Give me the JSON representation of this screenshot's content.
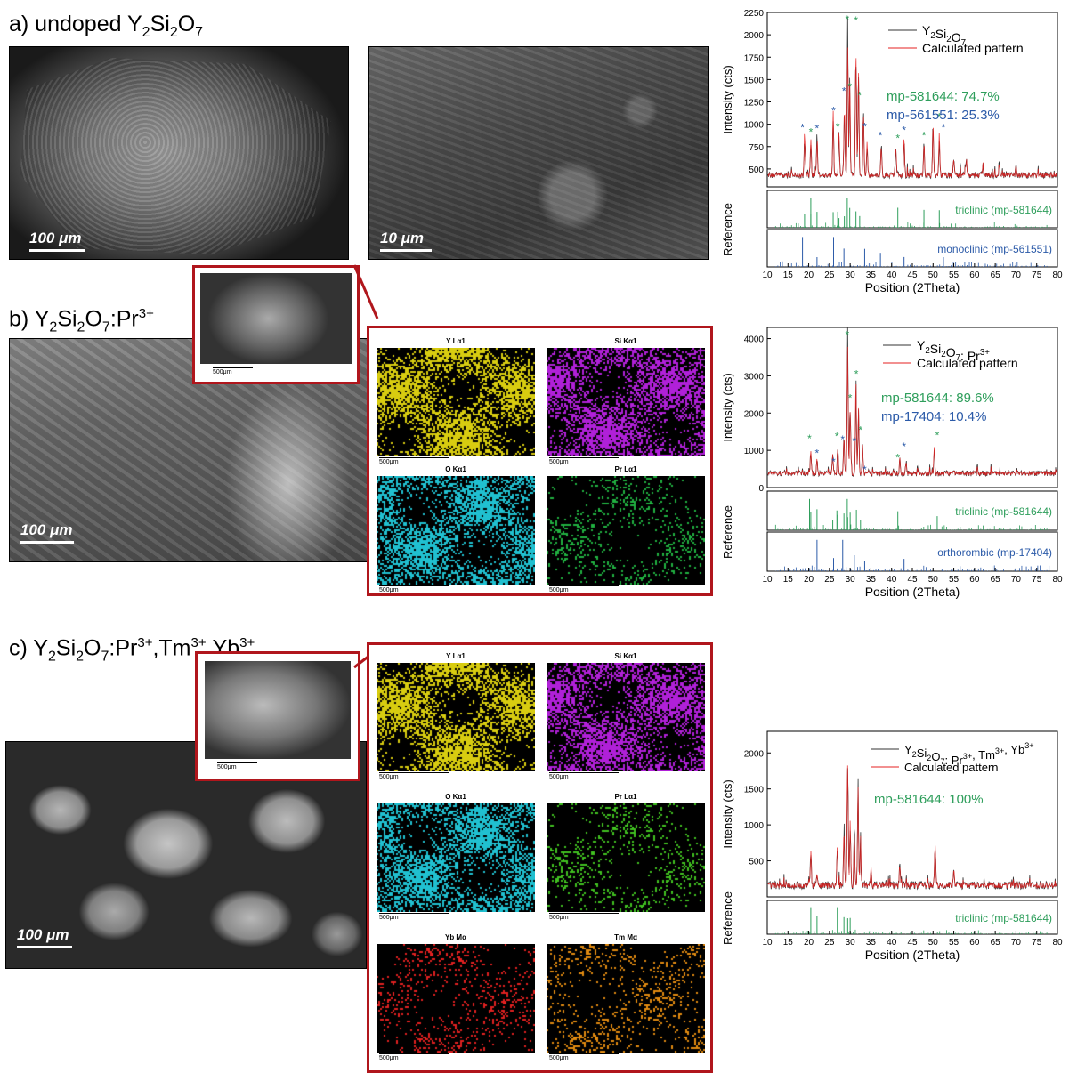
{
  "panels": {
    "a": {
      "title_prefix": "a)  undoped Y",
      "sub1": "2",
      "mid1": "Si",
      "sub2": "2",
      "mid2": "O",
      "sub3": "7",
      "scale1": "100 μm",
      "scale2": "10 μm"
    },
    "b": {
      "title_prefix": "b) Y",
      "sub1": "2",
      "mid1": "Si",
      "sub2": "2",
      "mid2": "O",
      "sub3": "7",
      "mid3": ":Pr",
      "sup1": "3+",
      "scale": "100 μm",
      "inset_scale": "500μm"
    },
    "c": {
      "title_prefix": "c) Y",
      "sub1": "2",
      "mid1": "Si",
      "sub2": "2",
      "mid2": "O",
      "sub3": "7",
      "mid3": ":Pr",
      "sup1": "3+",
      "mid4": ",Tm",
      "sup2": "3+",
      "mid5": ",Yb",
      "sup3": "3+",
      "scale": "100 μm",
      "inset_scale": "500μm"
    }
  },
  "eds": {
    "b": [
      {
        "label": "Y Lα1",
        "scale": "500μm",
        "color": "#d8cc10"
      },
      {
        "label": "Si Kα1",
        "scale": "500μm",
        "color": "#b020d8"
      },
      {
        "label": "O Kα1",
        "scale": "500μm",
        "color": "#20c0d0"
      },
      {
        "label": "Pr Lα1",
        "scale": "500μm",
        "color": "#20b040"
      }
    ],
    "c": [
      {
        "label": "Y Lα1",
        "scale": "500μm",
        "color": "#d8cc10"
      },
      {
        "label": "Si Kα1",
        "scale": "500μm",
        "color": "#b020d8"
      },
      {
        "label": "O Kα1",
        "scale": "500μm",
        "color": "#20c0d0"
      },
      {
        "label": "Pr Lα1",
        "scale": "500μm",
        "color": "#40c020"
      },
      {
        "label": "Yb Mα",
        "scale": "500μm",
        "color": "#e02020"
      },
      {
        "label": "Tm Mα",
        "scale": "500μm",
        "color": "#e08a10"
      }
    ]
  },
  "chart_data": [
    {
      "type": "line",
      "xlabel": "Position (2Theta)",
      "ylabel": "Intensity (cts)",
      "ref_ylabel": "Reference",
      "xlim": [
        10,
        80
      ],
      "ylim": [
        300,
        2250
      ],
      "yticks": [
        500,
        750,
        1000,
        1250,
        1500,
        1750,
        2000,
        2250
      ],
      "xticks": [
        10,
        15,
        20,
        25,
        30,
        35,
        40,
        45,
        50,
        55,
        60,
        65,
        70,
        75,
        80
      ],
      "legend": [
        "Y2Si2O7",
        "Calculated pattern"
      ],
      "legend_sample": {
        "main": "Y",
        "sub1": "2",
        "mid1": "Si",
        "sub2": "2",
        "mid2": "O",
        "sub3": "7"
      },
      "legend_calc": "Calculated pattern",
      "phase1": "mp-581644: 74.7%",
      "phase2": "mp-561551: 25.3%",
      "refs": [
        "triclinic (mp-581644)",
        "monoclinic (mp-561551)"
      ],
      "peaks": [
        [
          19.0,
          870
        ],
        [
          20.5,
          820
        ],
        [
          22.0,
          840
        ],
        [
          25.9,
          1080
        ],
        [
          27.3,
          900
        ],
        [
          28.6,
          1250
        ],
        [
          29.4,
          2000
        ],
        [
          29.9,
          1400
        ],
        [
          31.4,
          2050
        ],
        [
          32.0,
          1500
        ],
        [
          33.2,
          1100
        ],
        [
          34.1,
          800
        ],
        [
          37.5,
          760
        ],
        [
          41.0,
          760
        ],
        [
          43.0,
          820
        ],
        [
          47.8,
          760
        ],
        [
          50.0,
          1000
        ],
        [
          51.5,
          880
        ],
        [
          55.0,
          600
        ],
        [
          58.0,
          600
        ],
        [
          62.0,
          560
        ],
        [
          66.0,
          540
        ],
        [
          70.0,
          530
        ]
      ],
      "green_stars": [
        [
          20.5,
          870
        ],
        [
          27.0,
          930
        ],
        [
          29.3,
          2130
        ],
        [
          29.9,
          1380
        ],
        [
          31.4,
          2120
        ],
        [
          32.3,
          1280
        ],
        [
          41.5,
          800
        ],
        [
          47.8,
          830
        ],
        [
          51.5,
          1040
        ]
      ],
      "blue_stars": [
        [
          18.5,
          920
        ],
        [
          22.0,
          910
        ],
        [
          26.0,
          1110
        ],
        [
          28.5,
          1330
        ],
        [
          33.5,
          930
        ],
        [
          37.3,
          830
        ],
        [
          43.0,
          890
        ],
        [
          52.5,
          920
        ]
      ]
    },
    {
      "type": "line",
      "xlabel": "Position (2Theta)",
      "ylabel": "Intensity (cts)",
      "ref_ylabel": "Reference",
      "xlim": [
        10,
        80
      ],
      "ylim": [
        0,
        4300
      ],
      "yticks": [
        0,
        1000,
        2000,
        3000,
        4000
      ],
      "xticks": [
        10,
        15,
        20,
        25,
        30,
        35,
        40,
        45,
        50,
        55,
        60,
        65,
        70,
        75,
        80
      ],
      "legend_sample": {
        "main": "Y",
        "sub1": "2",
        "mid1": "Si",
        "sub2": "2",
        "mid2": "O",
        "sub3": "7",
        "rest": ": Pr",
        "sup1": "3+"
      },
      "legend_calc": "Calculated pattern",
      "phase1": "mp-581644: 89.6%",
      "phase2": "mp-17404: 10.4%",
      "refs": [
        "triclinic (mp-581644)",
        "orthorombic (mp-17404)"
      ],
      "peaks": [
        [
          20.5,
          1000
        ],
        [
          22.0,
          700
        ],
        [
          25.8,
          900
        ],
        [
          27.0,
          1100
        ],
        [
          28.5,
          1300
        ],
        [
          29.4,
          3700
        ],
        [
          30.0,
          2100
        ],
        [
          31.4,
          2700
        ],
        [
          32.0,
          2000
        ],
        [
          33.0,
          1100
        ],
        [
          42.0,
          800
        ],
        [
          43.5,
          700
        ],
        [
          50.3,
          1100
        ],
        [
          55,
          500
        ],
        [
          60,
          450
        ]
      ],
      "green_stars": [
        [
          20.2,
          1220
        ],
        [
          26.8,
          1280
        ],
        [
          29.3,
          4000
        ],
        [
          30.0,
          2300
        ],
        [
          31.5,
          2950
        ],
        [
          32.5,
          1450
        ],
        [
          41.5,
          700
        ],
        [
          51.0,
          1300
        ]
      ],
      "blue_stars": [
        [
          22.0,
          820
        ],
        [
          26.0,
          600
        ],
        [
          28.2,
          1200
        ],
        [
          31.0,
          1150
        ],
        [
          33.5,
          380
        ],
        [
          43.0,
          1000
        ]
      ]
    },
    {
      "type": "line",
      "xlabel": "Position (2Theta)",
      "ylabel": "Intensity (cts)",
      "ref_ylabel": "Reference",
      "xlim": [
        10,
        80
      ],
      "ylim": [
        0,
        2300
      ],
      "yticks": [
        500,
        1000,
        1500,
        2000
      ],
      "xticks": [
        10,
        15,
        20,
        25,
        30,
        35,
        40,
        45,
        50,
        55,
        60,
        65,
        70,
        75,
        80
      ],
      "legend_sample": {
        "main": "Y",
        "sub1": "2",
        "mid1": "Si",
        "sub2": "2",
        "mid2": "O",
        "sub3": "7",
        "rest": ": Pr",
        "sup1": "3+",
        "rest2": ", Tm",
        "sup2": "3+",
        "rest3": ", Yb",
        "sup3": "3+"
      },
      "legend_calc": "Calculated pattern",
      "phase1": "mp-581644: 100%",
      "refs": [
        "triclinic (mp-581644)"
      ],
      "peaks": [
        [
          20.5,
          620
        ],
        [
          22.0,
          300
        ],
        [
          26.9,
          650
        ],
        [
          28.5,
          900
        ],
        [
          29.4,
          2000
        ],
        [
          30.0,
          1000
        ],
        [
          31.0,
          900
        ],
        [
          31.9,
          1600
        ],
        [
          32.5,
          700
        ],
        [
          35,
          400
        ],
        [
          42.0,
          420
        ],
        [
          50.5,
          700
        ],
        [
          55,
          350
        ]
      ],
      "green_stars": [],
      "blue_stars": []
    }
  ],
  "colors": {
    "sample": "#333333",
    "calc": "#e52020",
    "green": "#2e9e5b",
    "blue": "#2b5aa8",
    "frame": "#b0161c"
  }
}
